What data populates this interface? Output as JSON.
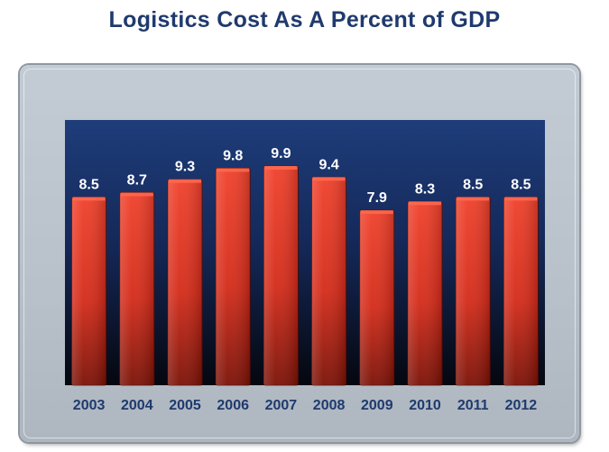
{
  "chart_data": {
    "type": "bar",
    "title": "Logistics Cost As A Percent of GDP",
    "categories": [
      "2003",
      "2004",
      "2005",
      "2006",
      "2007",
      "2008",
      "2009",
      "2010",
      "2011",
      "2012"
    ],
    "values": [
      8.5,
      8.7,
      9.3,
      9.8,
      9.9,
      9.4,
      7.9,
      8.3,
      8.5,
      8.5
    ],
    "value_labels": [
      "8.5",
      "8.7",
      "9.3",
      "9.8",
      "9.9",
      "9.4",
      "7.9",
      "8.3",
      "8.5",
      "8.5"
    ],
    "xlabel": "",
    "ylabel": "",
    "ylim": [
      0,
      11
    ],
    "grid": false,
    "colors": {
      "bar": "#e8321e",
      "bar_dark": "#8a1408",
      "plot_bg_top": "#1e3d7a",
      "plot_bg_bottom": "#05070f",
      "frame": "#bcc4cd",
      "title": "#1f3a6e"
    }
  }
}
